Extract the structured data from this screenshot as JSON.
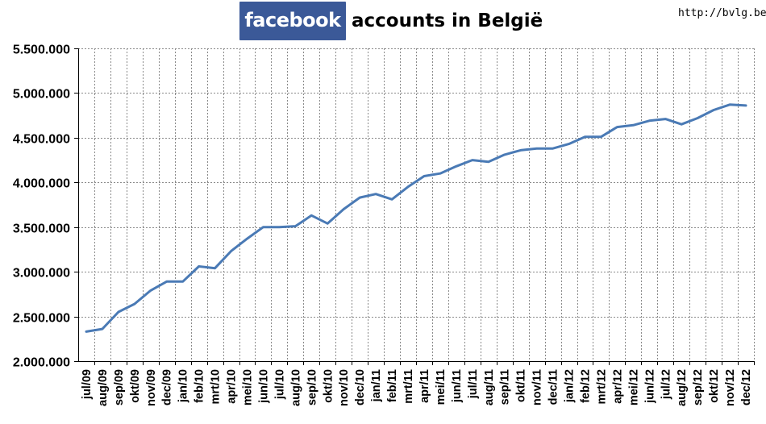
{
  "header": {
    "logo_text": "facebook",
    "title": "accounts in België",
    "source": "http://bvlg.be"
  },
  "colors": {
    "logo_bg": "#3b5998",
    "line": "#4a7ab5",
    "grid": "#8a8a8a"
  },
  "chart_data": {
    "type": "line",
    "title": "facebook accounts in België",
    "xlabel": "",
    "ylabel": "",
    "ylim": [
      2000000,
      5500000
    ],
    "yticks": [
      2000000,
      2500000,
      3000000,
      3500000,
      4000000,
      4500000,
      5000000,
      5500000
    ],
    "ytick_labels": [
      "2.000.000",
      "2.500.000",
      "3.000.000",
      "3.500.000",
      "4.000.000",
      "4.500.000",
      "5.000.000",
      "5.500.000"
    ],
    "grid": true,
    "legend": "none",
    "categories": [
      "jul/09",
      "aug/09",
      "sep/09",
      "okt/09",
      "nov/09",
      "dec/09",
      "jan/10",
      "feb/10",
      "mrt/10",
      "apr/10",
      "mei/10",
      "jun/10",
      "jul/10",
      "aug/10",
      "sep/10",
      "okt/10",
      "nov/10",
      "dec/10",
      "jan/11",
      "feb/11",
      "mrt/11",
      "apr/11",
      "mei/11",
      "jun/11",
      "jul/11",
      "aug/11",
      "sep/11",
      "okt/11",
      "nov/11",
      "dec/11",
      "jan/12",
      "feb/12",
      "mrt/12",
      "apr/12",
      "mei/12",
      "jun/12",
      "jul/12",
      "aug/12",
      "sep/12",
      "okt/12",
      "nov/12",
      "dec/12"
    ],
    "values": [
      2330000,
      2360000,
      2550000,
      2640000,
      2790000,
      2890000,
      2890000,
      3060000,
      3040000,
      3230000,
      3370000,
      3500000,
      3500000,
      3510000,
      3630000,
      3540000,
      3700000,
      3830000,
      3870000,
      3810000,
      3950000,
      4070000,
      4100000,
      4180000,
      4250000,
      4230000,
      4310000,
      4360000,
      4380000,
      4380000,
      4430000,
      4510000,
      4510000,
      4620000,
      4640000,
      4690000,
      4710000,
      4650000,
      4720000,
      4810000,
      4870000,
      4860000
    ]
  }
}
